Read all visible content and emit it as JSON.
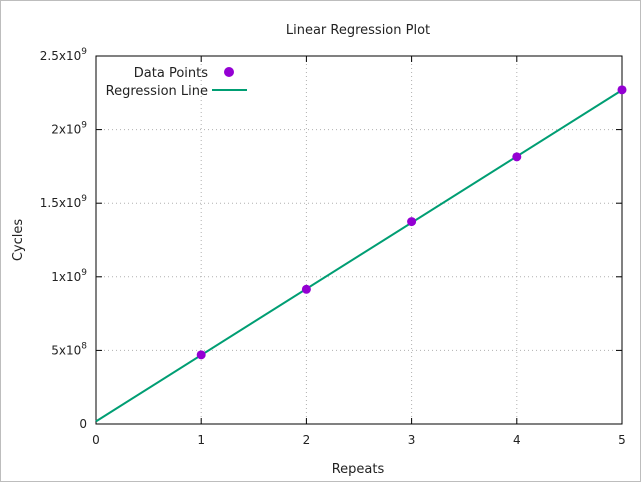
{
  "chart_data": {
    "type": "scatter",
    "title": "Linear Regression Plot",
    "xlabel": "Repeats",
    "ylabel": "Cycles",
    "xlim": [
      0,
      5
    ],
    "ylim": [
      0,
      2500000000
    ],
    "grid": true,
    "legend_position": "top-left",
    "x_ticks": [
      {
        "value": 0,
        "label": "0"
      },
      {
        "value": 1,
        "label": "1"
      },
      {
        "value": 2,
        "label": "2"
      },
      {
        "value": 3,
        "label": "3"
      },
      {
        "value": 4,
        "label": "4"
      },
      {
        "value": 5,
        "label": "5"
      }
    ],
    "y_ticks": [
      {
        "value": 0,
        "mantissa": "0",
        "exp": ""
      },
      {
        "value": 500000000,
        "mantissa": "5x10",
        "exp": "8"
      },
      {
        "value": 1000000000,
        "mantissa": "1x10",
        "exp": "9"
      },
      {
        "value": 1500000000,
        "mantissa": "1.5x10",
        "exp": "9"
      },
      {
        "value": 2000000000,
        "mantissa": "2x10",
        "exp": "9"
      },
      {
        "value": 2500000000,
        "mantissa": "2.5x10",
        "exp": "9"
      }
    ],
    "series": [
      {
        "name": "Data Points",
        "kind": "scatter",
        "color": "#9400d3",
        "x": [
          1,
          2,
          3,
          4,
          5
        ],
        "y": [
          470000000,
          915000000,
          1375000000,
          1815000000,
          2270000000
        ]
      },
      {
        "name": "Regression Line",
        "kind": "line",
        "color": "#009e73",
        "x": [
          0,
          5
        ],
        "y": [
          18000000,
          2268000000
        ]
      }
    ]
  }
}
